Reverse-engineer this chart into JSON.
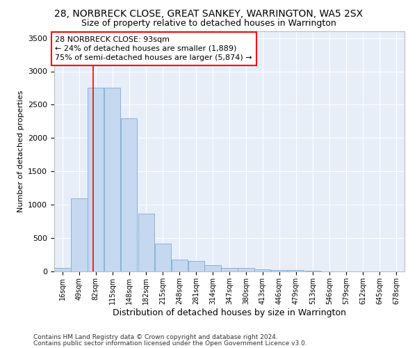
{
  "title": "28, NORBRECK CLOSE, GREAT SANKEY, WARRINGTON, WA5 2SX",
  "subtitle": "Size of property relative to detached houses in Warrington",
  "xlabel": "Distribution of detached houses by size in Warrington",
  "ylabel": "Number of detached properties",
  "bar_color": "#c5d8f0",
  "bar_edge_color": "#7aadd4",
  "bg_color": "#e8eef8",
  "grid_color": "#ffffff",
  "red_line_x": 93,
  "annotation_title": "28 NORBRECK CLOSE: 93sqm",
  "annotation_line1": "← 24% of detached houses are smaller (1,889)",
  "annotation_line2": "75% of semi-detached houses are larger (5,874) →",
  "footer1": "Contains HM Land Registry data © Crown copyright and database right 2024.",
  "footer2": "Contains public sector information licensed under the Open Government Licence v3.0.",
  "bin_edges": [
    16,
    49,
    82,
    115,
    148,
    182,
    215,
    248,
    281,
    314,
    347,
    380,
    413,
    446,
    479,
    513,
    546,
    579,
    612,
    645,
    678
  ],
  "bin_labels": [
    "16sqm",
    "49sqm",
    "82sqm",
    "115sqm",
    "148sqm",
    "182sqm",
    "215sqm",
    "248sqm",
    "281sqm",
    "314sqm",
    "347sqm",
    "380sqm",
    "413sqm",
    "446sqm",
    "479sqm",
    "513sqm",
    "546sqm",
    "579sqm",
    "612sqm",
    "645sqm",
    "678sqm"
  ],
  "counts": [
    50,
    1100,
    2750,
    2750,
    2300,
    870,
    420,
    175,
    160,
    90,
    55,
    50,
    35,
    25,
    18,
    10,
    5,
    4,
    3,
    2
  ],
  "ylim": [
    0,
    3600
  ],
  "yticks": [
    0,
    500,
    1000,
    1500,
    2000,
    2500,
    3000,
    3500
  ]
}
